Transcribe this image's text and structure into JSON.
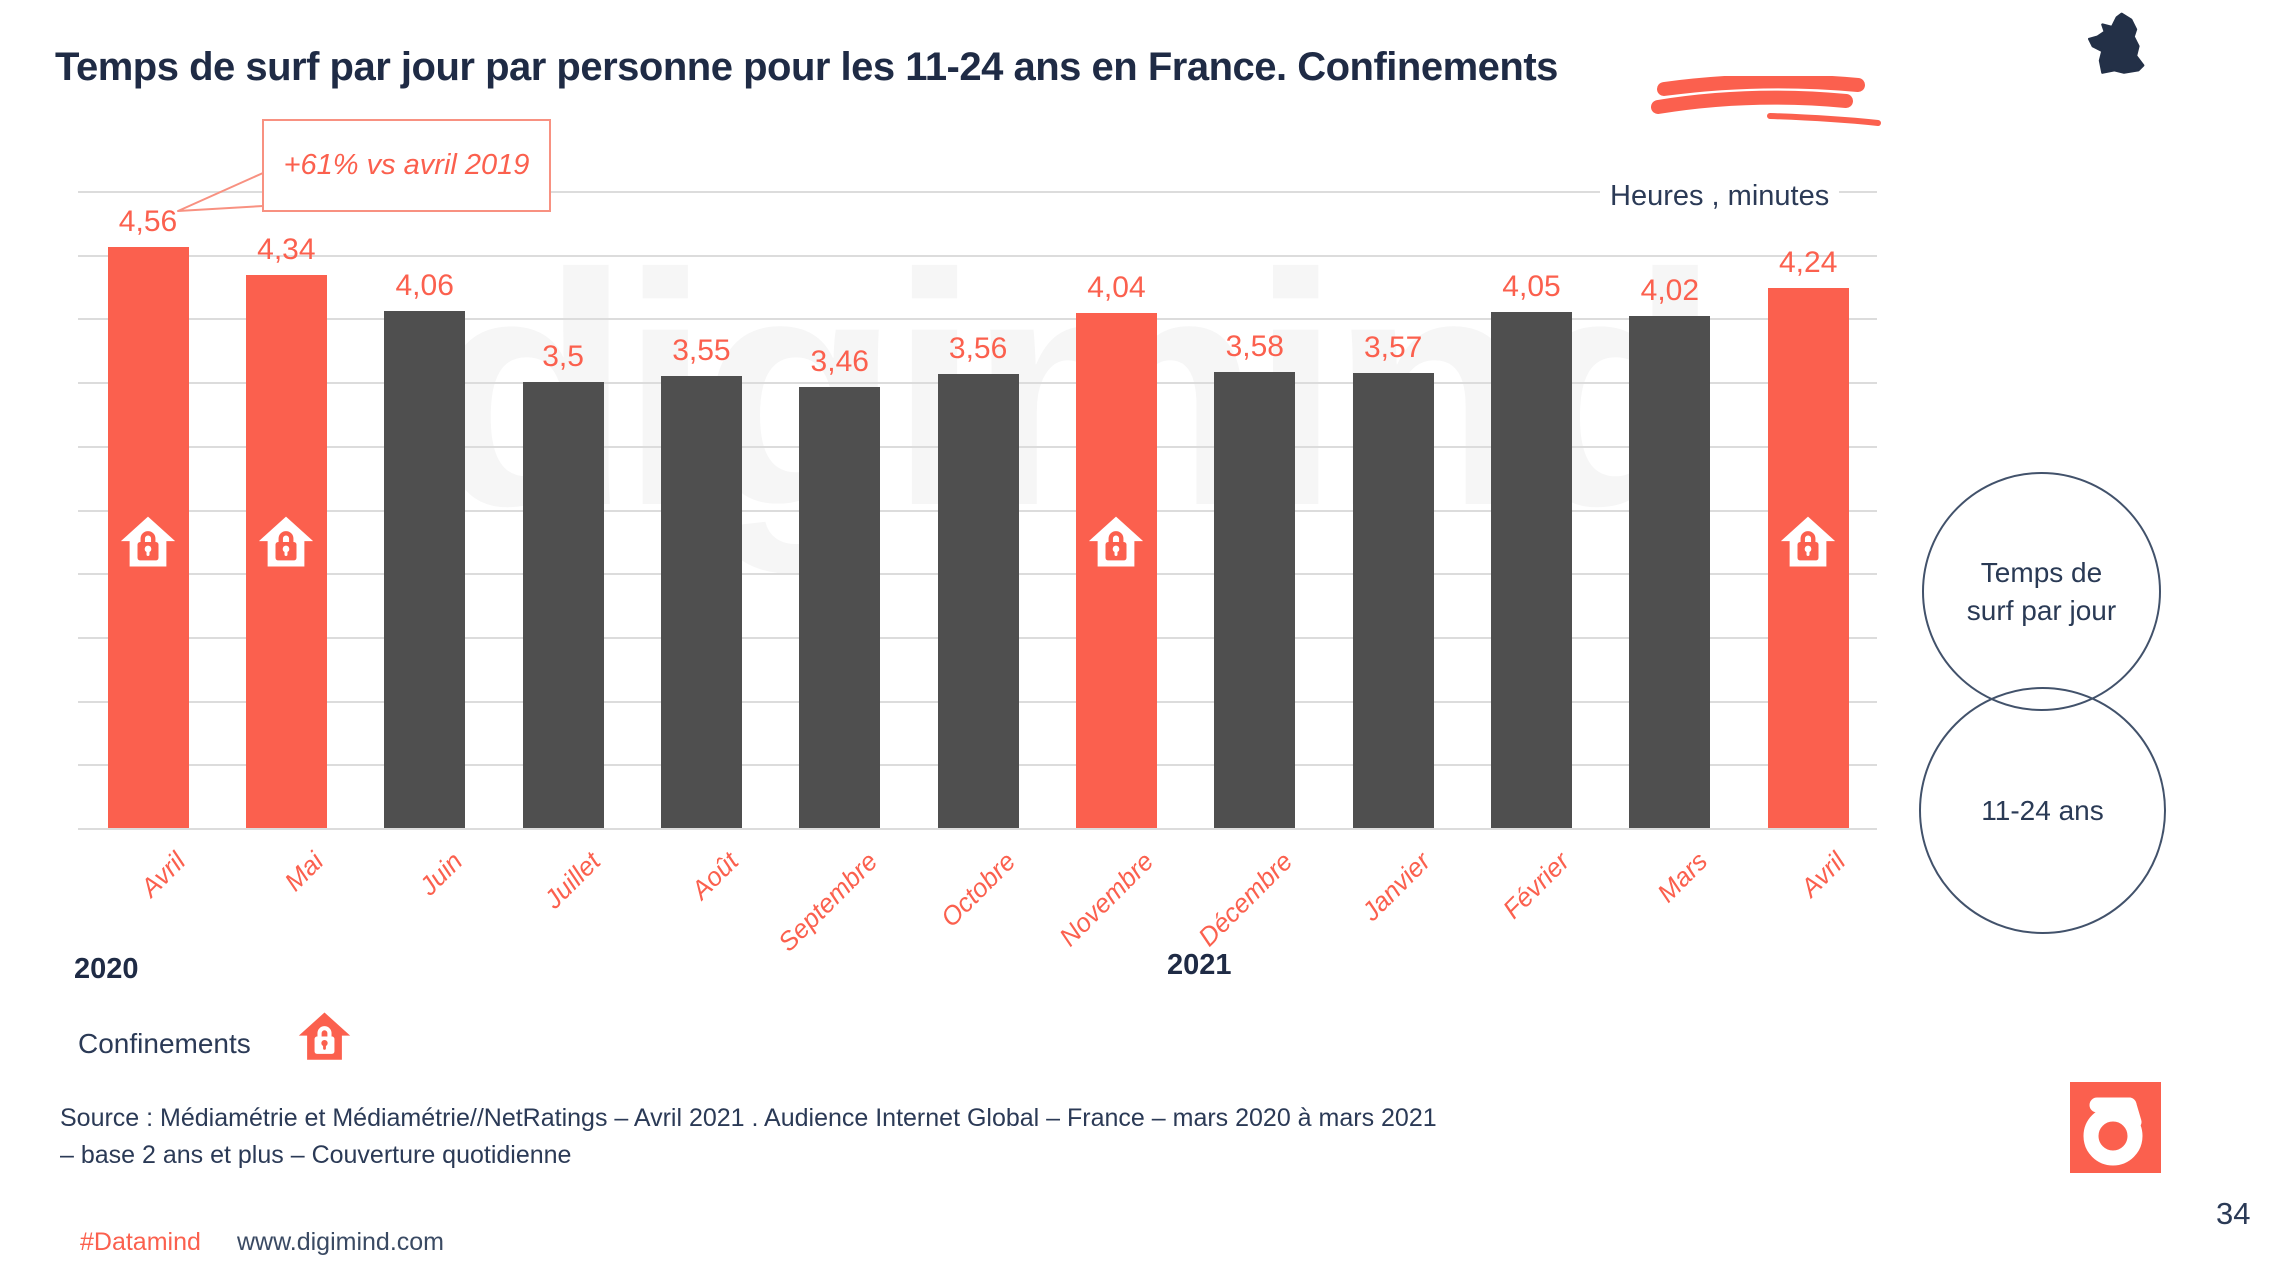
{
  "slide": {
    "title": "Temps de surf par jour par personne pour les 11-24 ans en France. Confinements",
    "page_number": "34",
    "watermark": "digimind"
  },
  "chart_data": {
    "type": "bar",
    "title": "Temps de surf par jour par personne pour les 11-24 ans en France. Confinements",
    "unit_label": "Heures , minutes",
    "ylim": [
      0,
      5
    ],
    "gridline_step": 0.5,
    "grid": true,
    "annotation": "+61% vs avril 2019",
    "legend_label": "Confinements",
    "year_labels": {
      "left": "2020",
      "right": "2021"
    },
    "categories": [
      "Avril",
      "Mai",
      "Juin",
      "Juillet",
      "Août",
      "Septembre",
      "Octobre",
      "Novembre",
      "Décembre",
      "Janvier",
      "Février",
      "Mars",
      "Avril"
    ],
    "months": [
      {
        "name": "Avril",
        "value_label": "4,56",
        "value": 4.56,
        "confinement": true
      },
      {
        "name": "Mai",
        "value_label": "4,34",
        "value": 4.34,
        "confinement": true
      },
      {
        "name": "Juin",
        "value_label": "4,06",
        "value": 4.06,
        "confinement": false
      },
      {
        "name": "Juillet",
        "value_label": "3,5",
        "value": 3.5,
        "confinement": false
      },
      {
        "name": "Août",
        "value_label": "3,55",
        "value": 3.55,
        "confinement": false
      },
      {
        "name": "Septembre",
        "value_label": "3,46",
        "value": 3.46,
        "confinement": false
      },
      {
        "name": "Octobre",
        "value_label": "3,56",
        "value": 3.56,
        "confinement": false
      },
      {
        "name": "Novembre",
        "value_label": "4,04",
        "value": 4.04,
        "confinement": true
      },
      {
        "name": "Décembre",
        "value_label": "3,58",
        "value": 3.58,
        "confinement": false
      },
      {
        "name": "Janvier",
        "value_label": "3,57",
        "value": 3.57,
        "confinement": false
      },
      {
        "name": "Février",
        "value_label": "4,05",
        "value": 4.05,
        "confinement": false
      },
      {
        "name": "Mars",
        "value_label": "4,02",
        "value": 4.02,
        "confinement": false
      },
      {
        "name": "Avril",
        "value_label": "4,24",
        "value": 4.24,
        "confinement": true
      }
    ]
  },
  "side_circles": {
    "top_label": "Temps de surf par jour",
    "bottom_label": "11-24 ans"
  },
  "source": {
    "line1": "Source :  Médiamétrie et Médiamétrie//NetRatings – Avril 2021 .  Audience Internet Global – France – mars 2020 à mars 2021",
    "line2": "– base 2 ans et plus – Couverture quotidienne"
  },
  "footer": {
    "hashtag": "#Datamind",
    "website": "www.digimind.com"
  },
  "colors": {
    "accent": "#FB604E",
    "bar_gray": "#4F4F4F",
    "navy": "#1F2B45",
    "text_navy": "#2B3A56",
    "gridline": "#DCDCDC",
    "annotation_border": "#F89181"
  }
}
